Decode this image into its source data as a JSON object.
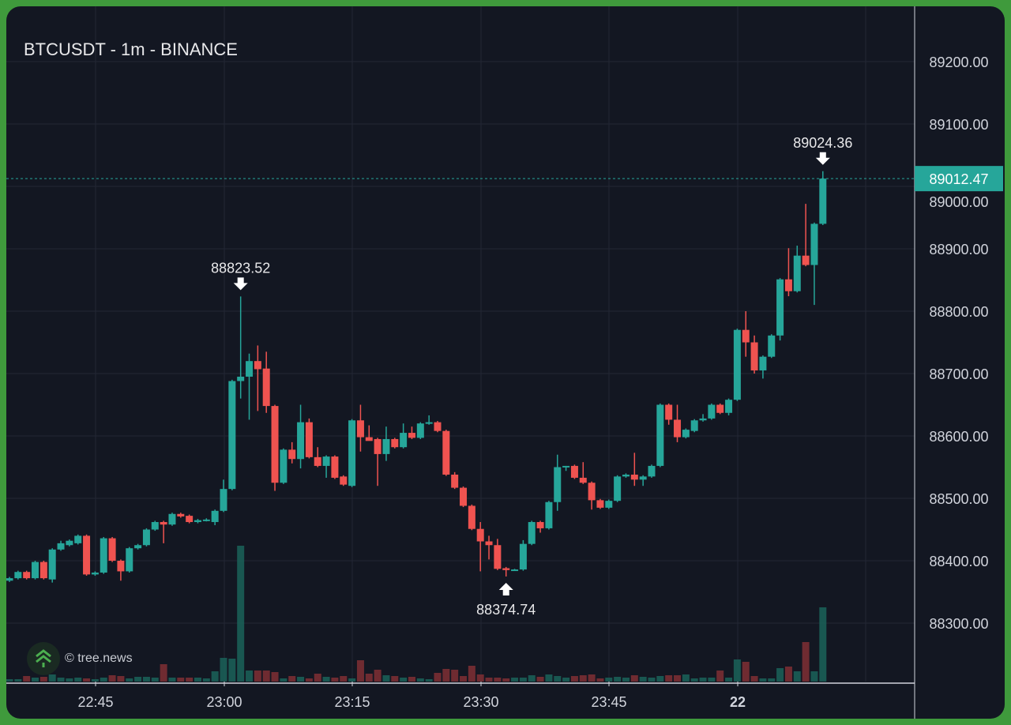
{
  "header": {
    "title": "BTCUSDT - 1m - BINANCE"
  },
  "watermark": {
    "text": "© tree.news",
    "icon": "tree-chevrons-icon"
  },
  "colors": {
    "up": "#26a69a",
    "down": "#ef5350",
    "background": "#131722",
    "grid": "#232734",
    "frame": "#3f9a3c",
    "last_price_bg": "#26a69a"
  },
  "chart_data": {
    "type": "candlestick",
    "title": "BTCUSDT - 1m - BINANCE",
    "interval": "1m",
    "x_start": "22:35",
    "ylim": [
      88200,
      89300
    ],
    "y_ticks": [
      "89200.00",
      "89100.00",
      "89000.00",
      "88900.00",
      "88800.00",
      "88700.00",
      "88600.00",
      "88500.00",
      "88400.00",
      "88300.00"
    ],
    "x_ticks": [
      "22:45",
      "23:00",
      "23:15",
      "23:30",
      "23:45",
      "22"
    ],
    "grid": true,
    "last_price": "89012.47",
    "annotations": {
      "high_left": "88823.52",
      "low": "88374.74",
      "high_right": "89024.36"
    },
    "ohlc": [
      [
        88368,
        88374,
        88366,
        88372
      ],
      [
        88372,
        88384,
        88370,
        88382
      ],
      [
        88382,
        88384,
        88370,
        88372
      ],
      [
        88372,
        88400,
        88370,
        88398
      ],
      [
        88398,
        88400,
        88370,
        88372
      ],
      [
        88370,
        88420,
        88365,
        88418
      ],
      [
        88418,
        88432,
        88416,
        88428
      ],
      [
        88425,
        88434,
        88423,
        88432
      ],
      [
        88428,
        88442,
        88426,
        88440
      ],
      [
        88440,
        88442,
        88376,
        88378
      ],
      [
        88378,
        88383,
        88376,
        88381
      ],
      [
        88381,
        88438,
        88379,
        88436
      ],
      [
        88436,
        88438,
        88398,
        88400
      ],
      [
        88400,
        88402,
        88368,
        88383
      ],
      [
        88383,
        88422,
        88381,
        88420
      ],
      [
        88420,
        88427,
        88418,
        88425
      ],
      [
        88425,
        88452,
        88423,
        88450
      ],
      [
        88450,
        88464,
        88448,
        88462
      ],
      [
        88462,
        88464,
        88428,
        88458
      ],
      [
        88458,
        88477,
        88456,
        88475
      ],
      [
        88475,
        88477,
        88469,
        88471
      ],
      [
        88472,
        88474,
        88460,
        88462
      ],
      [
        88462,
        88467,
        88460,
        88465
      ],
      [
        88465,
        88468,
        88463,
        88466
      ],
      [
        88462,
        88482,
        88457,
        88480
      ],
      [
        88480,
        88530,
        88478,
        88515
      ],
      [
        88515,
        88690,
        88513,
        88688
      ],
      [
        88688,
        88823.52,
        88660,
        88695
      ],
      [
        88695,
        88732,
        88626,
        88720
      ],
      [
        88720,
        88745,
        88640,
        88707
      ],
      [
        88708,
        88735,
        88637,
        88648
      ],
      [
        88648,
        88650,
        88512,
        88525
      ],
      [
        88525,
        88580,
        88523,
        88578
      ],
      [
        88578,
        88590,
        88556,
        88563
      ],
      [
        88563,
        88650,
        88548,
        88622
      ],
      [
        88622,
        88628,
        88564,
        88566
      ],
      [
        88566,
        88582,
        88550,
        88552
      ],
      [
        88552,
        88569,
        88533,
        88567
      ],
      [
        88567,
        88569,
        88531,
        88533
      ],
      [
        88535,
        88537,
        88520,
        88522
      ],
      [
        88520,
        88627,
        88518,
        88625
      ],
      [
        88625,
        88650,
        88575,
        88598
      ],
      [
        88598,
        88617,
        88596,
        88592
      ],
      [
        88595,
        88597,
        88520,
        88571
      ],
      [
        88571,
        88615,
        88560,
        88595
      ],
      [
        88595,
        88597,
        88580,
        88582
      ],
      [
        88582,
        88620,
        88580,
        88605
      ],
      [
        88605,
        88615,
        88595,
        88597
      ],
      [
        88597,
        88622,
        88595,
        88620
      ],
      [
        88620,
        88633,
        88618,
        88622
      ],
      [
        88622,
        88624,
        88606,
        88608
      ],
      [
        88608,
        88610,
        88536,
        88538
      ],
      [
        88538,
        88542,
        88515,
        88517
      ],
      [
        88517,
        88519,
        88486,
        88488
      ],
      [
        88488,
        88490,
        88449,
        88451
      ],
      [
        88451,
        88462,
        88383,
        88431
      ],
      [
        88431,
        88440,
        88402,
        88425
      ],
      [
        88425,
        88435,
        88385,
        88387
      ],
      [
        88388,
        88390,
        88374.74,
        88385
      ],
      [
        88385,
        88387,
        88384,
        88386
      ],
      [
        88386,
        88433,
        88384,
        88427
      ],
      [
        88427,
        88464,
        88425,
        88462
      ],
      [
        88462,
        88464,
        88445,
        88452
      ],
      [
        88452,
        88496,
        88450,
        88494
      ],
      [
        88494,
        88570,
        88480,
        88550
      ],
      [
        88550,
        88552,
        88544,
        88552
      ],
      [
        88552,
        88554,
        88531,
        88533
      ],
      [
        88533,
        88558,
        88523,
        88525
      ],
      [
        88525,
        88527,
        88482,
        88497
      ],
      [
        88497,
        88499,
        88483,
        88485
      ],
      [
        88485,
        88498,
        88483,
        88496
      ],
      [
        88496,
        88537,
        88494,
        88535
      ],
      [
        88535,
        88540,
        88533,
        88538
      ],
      [
        88538,
        88573,
        88520,
        88530
      ],
      [
        88530,
        88537,
        88520,
        88535
      ],
      [
        88535,
        88554,
        88533,
        88552
      ],
      [
        88552,
        88652,
        88550,
        88650
      ],
      [
        88650,
        88652,
        88618,
        88626
      ],
      [
        88626,
        88650,
        88590,
        88598
      ],
      [
        88598,
        88612,
        88596,
        88610
      ],
      [
        88608,
        88627,
        88606,
        88625
      ],
      [
        88625,
        88635,
        88623,
        88628
      ],
      [
        88628,
        88652,
        88626,
        88650
      ],
      [
        88650,
        88652,
        88635,
        88637
      ],
      [
        88637,
        88660,
        88633,
        88658
      ],
      [
        88658,
        88772,
        88656,
        88770
      ],
      [
        88770,
        88800,
        88727,
        88750
      ],
      [
        88750,
        88761,
        88700,
        88705
      ],
      [
        88705,
        88729,
        88692,
        88727
      ],
      [
        88727,
        88763,
        88725,
        88761
      ],
      [
        88761,
        88853,
        88753,
        88851
      ],
      [
        88851,
        88901,
        88824,
        88832
      ],
      [
        88832,
        88905,
        88830,
        88889
      ],
      [
        88889,
        88972,
        88872,
        88874
      ],
      [
        88874,
        88942,
        88810,
        88940
      ],
      [
        88940,
        89024.36,
        88938,
        89012.47
      ]
    ],
    "volume": [
      3,
      3,
      7,
      5,
      6,
      9,
      5,
      4,
      5,
      4,
      3,
      5,
      8,
      7,
      4,
      6,
      6,
      5,
      22,
      5,
      5,
      5,
      5,
      4,
      13,
      30,
      29,
      172,
      14,
      14,
      14,
      12,
      4,
      7,
      6,
      4,
      10,
      6,
      5,
      7,
      4,
      27,
      10,
      15,
      8,
      7,
      5,
      6,
      4,
      3,
      11,
      16,
      15,
      7,
      20,
      9,
      5,
      5,
      4,
      5,
      5,
      8,
      6,
      9,
      7,
      5,
      7,
      8,
      9,
      4,
      5,
      6,
      5,
      8,
      6,
      5,
      7,
      8,
      8,
      9,
      4,
      5,
      5,
      14,
      5,
      28,
      25,
      7,
      4,
      4,
      17,
      19,
      13,
      50,
      13,
      94
    ]
  }
}
